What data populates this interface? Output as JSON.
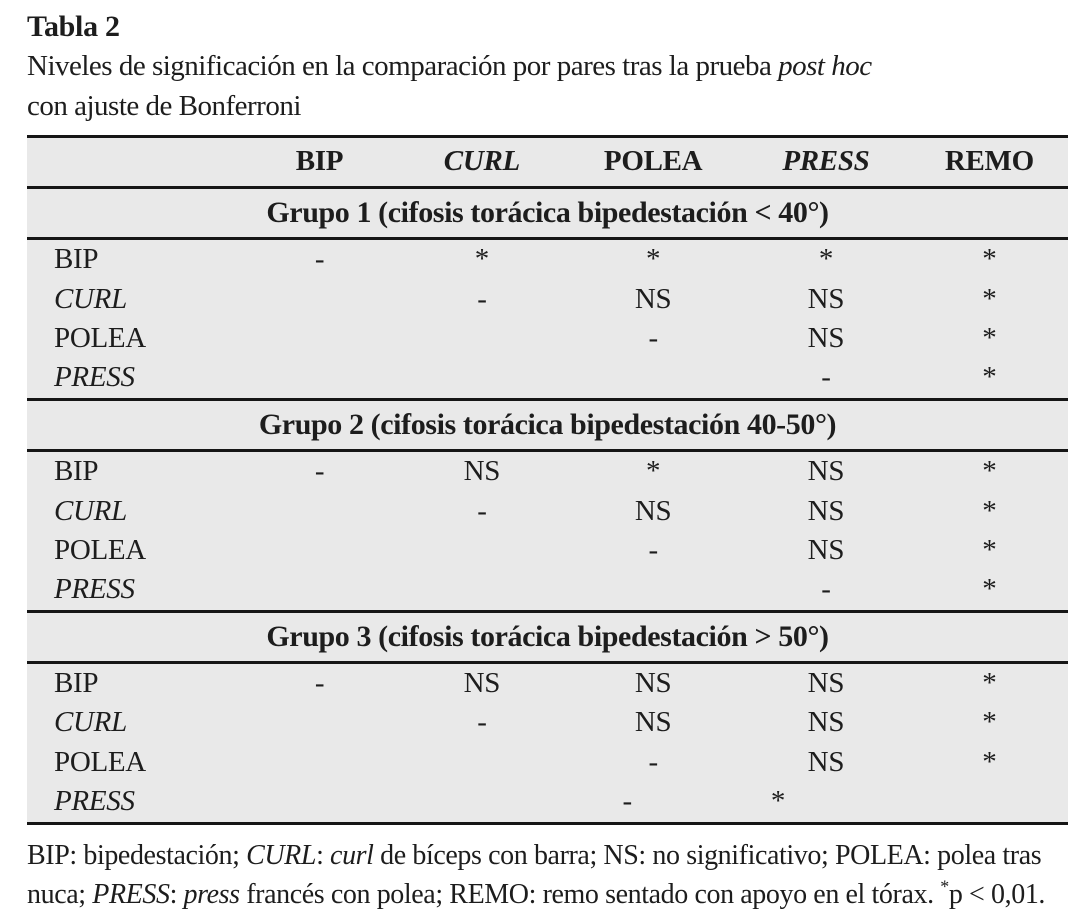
{
  "colors": {
    "table_background": "#e9e9e9",
    "rule": "#161616",
    "text": "#1d1d1d"
  },
  "title": "Tabla 2",
  "subtitle": {
    "line1_regular": "Niveles de significación en la comparación por pares tras la prueba ",
    "line1_italic": "post hoc",
    "line2": "con ajuste de Bonferroni"
  },
  "table": {
    "columns": [
      {
        "label": "BIP",
        "italic": false
      },
      {
        "label": "CURL",
        "italic": true
      },
      {
        "label": "POLEA",
        "italic": false
      },
      {
        "label": "PRESS",
        "italic": true
      },
      {
        "label": "REMO",
        "italic": false
      }
    ],
    "groups": [
      {
        "header": "Grupo 1 (cifosis torácica bipedestación < 40°)",
        "rows": [
          {
            "label": "BIP",
            "italic": false,
            "values": [
              "-",
              "*",
              "*",
              "*",
              "*"
            ]
          },
          {
            "label": "CURL",
            "italic": true,
            "values": [
              "",
              "-",
              "NS",
              "NS",
              "*"
            ]
          },
          {
            "label": "POLEA",
            "italic": false,
            "values": [
              "",
              "",
              "-",
              "NS",
              "*"
            ]
          },
          {
            "label": "PRESS",
            "italic": true,
            "values": [
              "",
              "",
              "",
              "-",
              "*"
            ]
          }
        ]
      },
      {
        "header": "Grupo 2 (cifosis torácica bipedestación 40-50°)",
        "rows": [
          {
            "label": "BIP",
            "italic": false,
            "values": [
              "-",
              "NS",
              "*",
              "NS",
              "*"
            ]
          },
          {
            "label": "CURL",
            "italic": true,
            "values": [
              "",
              "-",
              "NS",
              "NS",
              "*"
            ]
          },
          {
            "label": "POLEA",
            "italic": false,
            "values": [
              "",
              "",
              "-",
              "NS",
              "*"
            ]
          },
          {
            "label": "PRESS",
            "italic": true,
            "values": [
              "",
              "",
              "",
              "-",
              "*"
            ]
          }
        ]
      },
      {
        "header": "Grupo 3 (cifosis torácica bipedestación > 50°)",
        "rows": [
          {
            "label": "BIP",
            "italic": false,
            "values": [
              "-",
              "NS",
              "NS",
              "NS",
              "*"
            ]
          },
          {
            "label": "CURL",
            "italic": true,
            "values": [
              "",
              "-",
              "NS",
              "NS",
              "*"
            ]
          },
          {
            "label": "POLEA",
            "italic": false,
            "values": [
              "",
              "",
              "-",
              "NS",
              "*"
            ]
          },
          {
            "label": "PRESS",
            "italic": true,
            "values": [
              "",
              "",
              "-",
              "*",
              ""
            ]
          }
        ]
      }
    ]
  },
  "footnote_parts": [
    {
      "t": "BIP: bipedestación; "
    },
    {
      "t": "CURL",
      "i": true
    },
    {
      "t": ": "
    },
    {
      "t": "curl",
      "i": true
    },
    {
      "t": " de bíceps con barra; NS: no significativo; POLEA: polea tras nuca; "
    },
    {
      "t": "PRESS",
      "i": true
    },
    {
      "t": ": "
    },
    {
      "t": "press",
      "i": true
    },
    {
      "t": " francés con polea; REMO: remo sentado con apoyo en el tórax. "
    },
    {
      "t": "*",
      "sup": true
    },
    {
      "t": "p < 0,01."
    }
  ],
  "chart_data": {
    "type": "table",
    "title": "Tabla 2. Niveles de significación en la comparación por pares tras la prueba post hoc con ajuste de Bonferroni",
    "columns": [
      "",
      "BIP",
      "CURL",
      "POLEA",
      "PRESS",
      "REMO"
    ],
    "sections": [
      {
        "section": "Grupo 1 (cifosis torácica bipedestación < 40°)",
        "rows": [
          [
            "BIP",
            "-",
            "*",
            "*",
            "*",
            "*"
          ],
          [
            "CURL",
            "",
            "-",
            "NS",
            "NS",
            "*"
          ],
          [
            "POLEA",
            "",
            "",
            "-",
            "NS",
            "*"
          ],
          [
            "PRESS",
            "",
            "",
            "",
            "-",
            "*"
          ]
        ]
      },
      {
        "section": "Grupo 2 (cifosis torácica bipedestación 40-50°)",
        "rows": [
          [
            "BIP",
            "-",
            "NS",
            "*",
            "NS",
            "*"
          ],
          [
            "CURL",
            "",
            "-",
            "NS",
            "NS",
            "*"
          ],
          [
            "POLEA",
            "",
            "",
            "-",
            "NS",
            "*"
          ],
          [
            "PRESS",
            "",
            "",
            "",
            "-",
            "*"
          ]
        ]
      },
      {
        "section": "Grupo 3 (cifosis torácica bipedestación > 50°)",
        "rows": [
          [
            "BIP",
            "-",
            "NS",
            "NS",
            "NS",
            "*"
          ],
          [
            "CURL",
            "",
            "-",
            "NS",
            "NS",
            "*"
          ],
          [
            "POLEA",
            "",
            "",
            "-",
            "NS",
            "*"
          ],
          [
            "PRESS",
            "",
            "",
            "-",
            "*",
            ""
          ]
        ]
      }
    ]
  }
}
